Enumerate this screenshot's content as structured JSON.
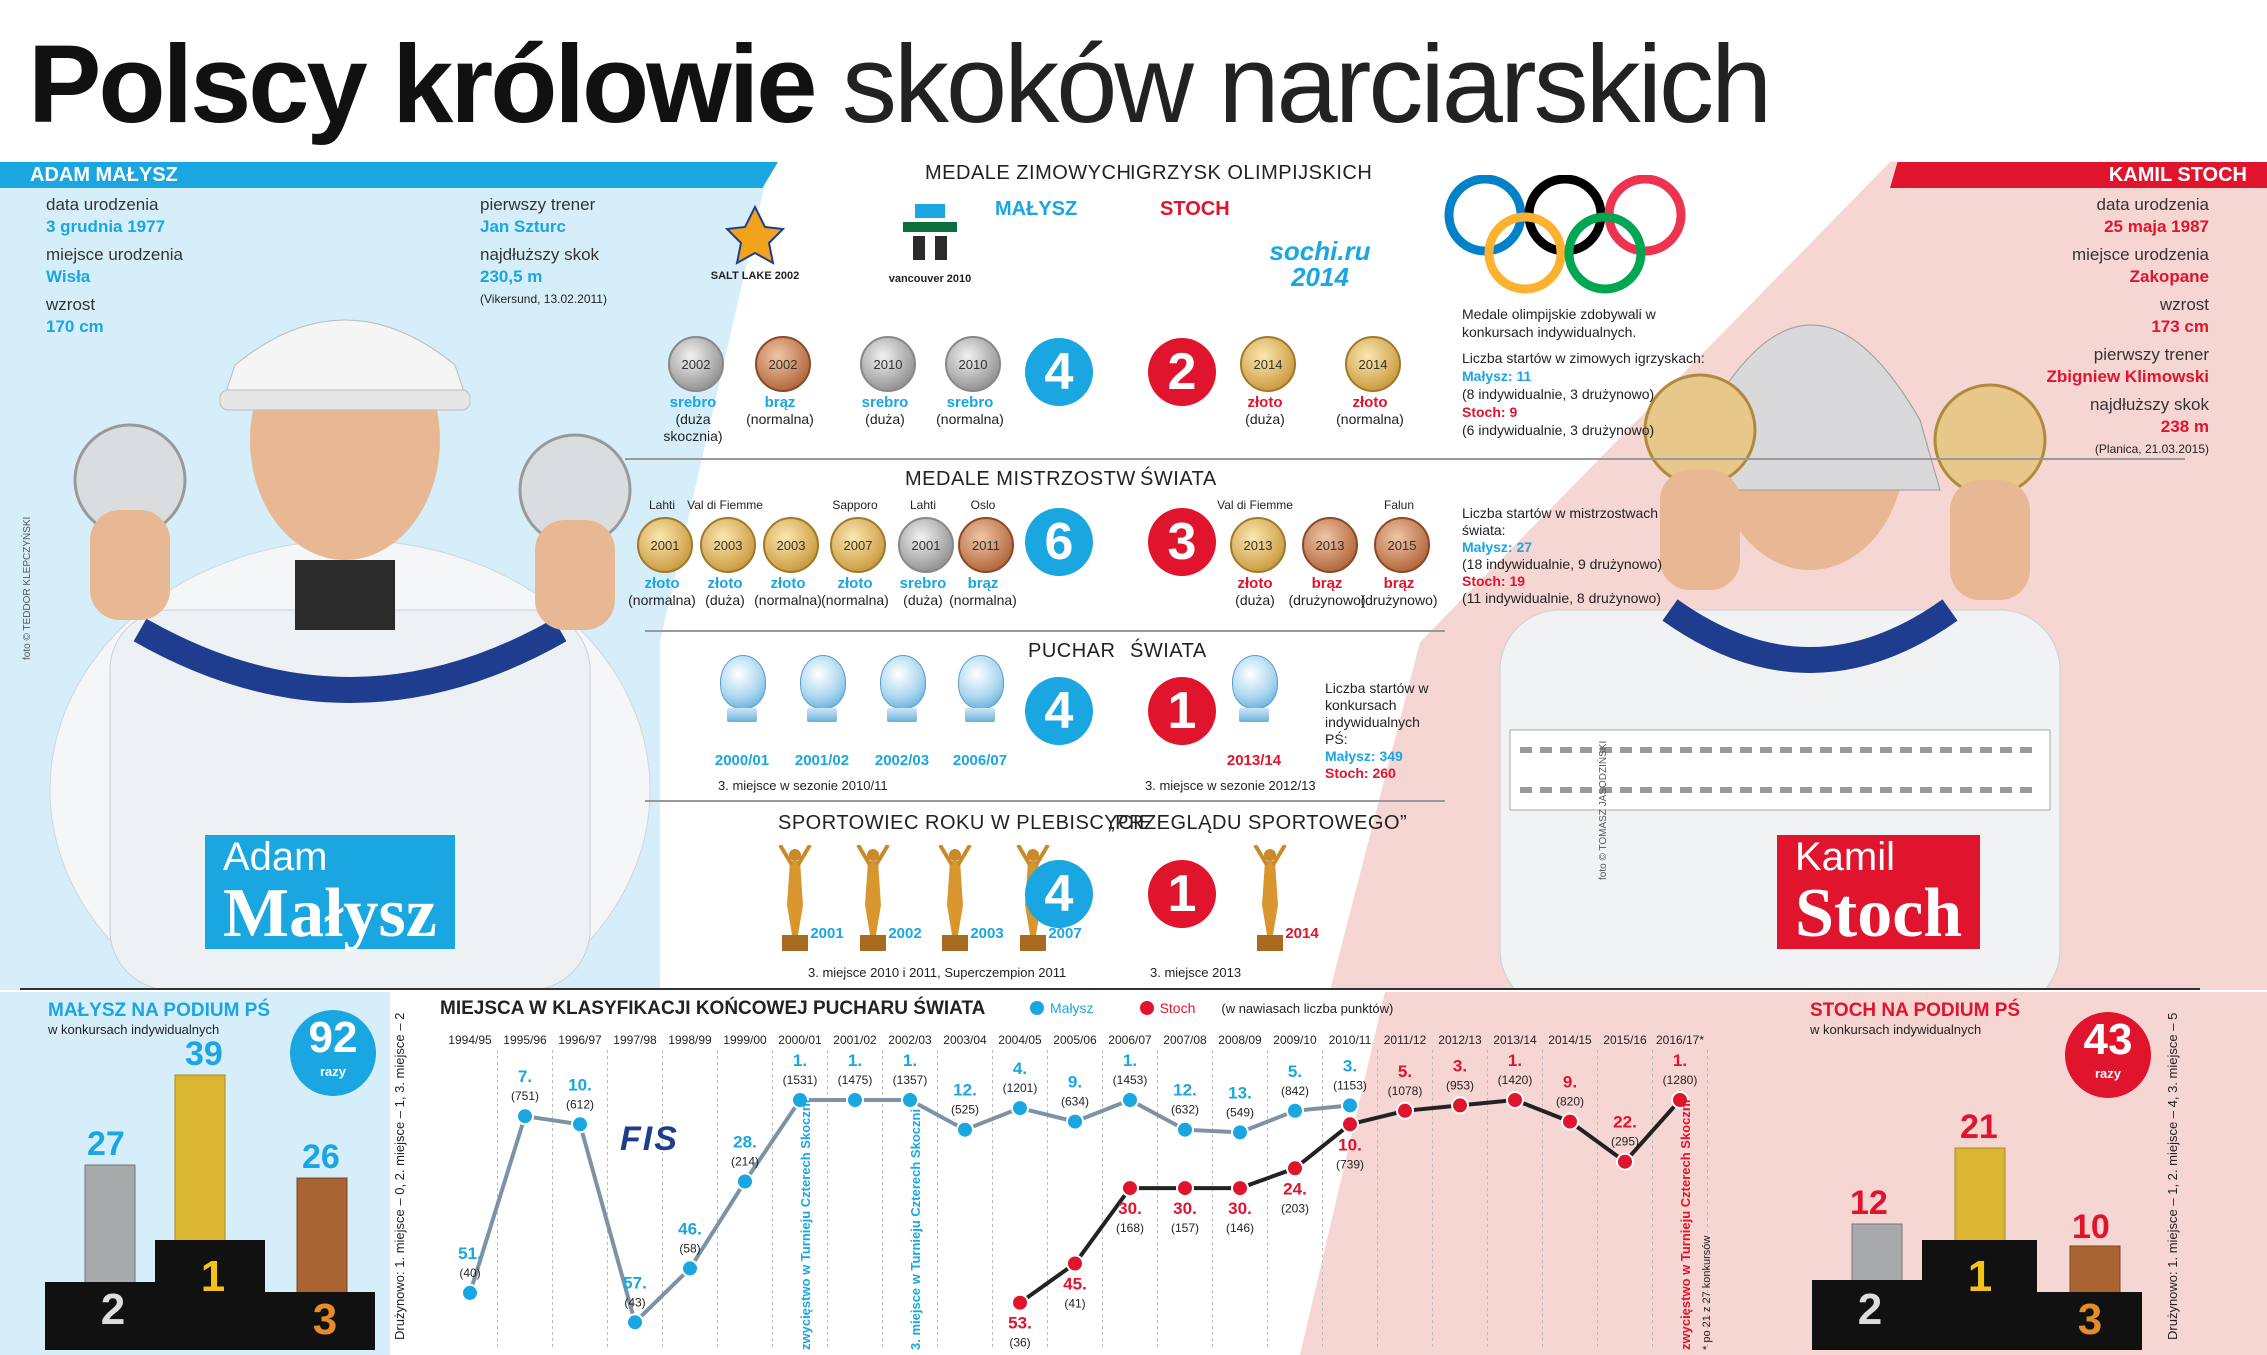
{
  "title": {
    "bold": "Polscy królowie",
    "light": "skoków narciarskich"
  },
  "colors": {
    "malysz_blue": "#1aa6e0",
    "stoch_red": "#e0142c",
    "light_blue_bg": "#d6eefa",
    "light_red_bg": "#f6d6d3"
  },
  "malysz": {
    "bar_name": "ADAM MAŁYSZ",
    "birth_date_label": "data urodzenia",
    "birth_date": "3 grudnia 1977",
    "birth_place_label": "miejsce urodzenia",
    "birth_place": "Wisła",
    "height_label": "wzrost",
    "height": "170 cm",
    "coach_label": "pierwszy trener",
    "coach": "Jan Szturc",
    "longest_label": "najdłuższy skok",
    "longest": "230,5 m",
    "longest_note": "(Vikersund, 13.02.2011)",
    "photo_credit": "foto © TEDDOR KLEPCZYŃSKI",
    "name_first": "Adam",
    "name_last": "Małysz"
  },
  "stoch": {
    "bar_name": "KAMIL STOCH",
    "birth_date_label": "data urodzenia",
    "birth_date": "25 maja 1987",
    "birth_place_label": "miejsce urodzenia",
    "birth_place": "Zakopane",
    "height_label": "wzrost",
    "height": "173 cm",
    "coach_label": "pierwszy trener",
    "coach": "Zbigniew Klimowski",
    "longest_label": "najdłuższy skok",
    "longest": "238 m",
    "longest_note": "(Planica, 21.03.2015)",
    "photo_credit": "foto © TOMASZ JASODZIŃSKI",
    "name_first": "Kamil",
    "name_last": "Stoch"
  },
  "olympics": {
    "title_left": "MEDALE ZIMOWYCH",
    "title_right": "IGRZYSK OLIMPIJSKICH",
    "label_malysz": "MAŁYSZ",
    "label_stoch": "STOCH",
    "logo_slc": "SALT LAKE 2002",
    "logo_van": "vancouver 2010",
    "logo_sochi": "sochi.ru 2014",
    "count_malysz": "4",
    "count_stoch": "2",
    "medals_malysz": [
      {
        "year": "2002",
        "type": "srebro",
        "note": "(duża skocznia)"
      },
      {
        "year": "2002",
        "type": "brąz",
        "note": "(normalna)"
      },
      {
        "year": "2010",
        "type": "srebro",
        "note": "(duża)"
      },
      {
        "year": "2010",
        "type": "srebro",
        "note": "(normalna)"
      }
    ],
    "medals_stoch": [
      {
        "year": "2014",
        "type": "złoto",
        "note": "(duża)"
      },
      {
        "year": "2014",
        "type": "złoto",
        "note": "(normalna)"
      }
    ],
    "side_text": "Medale olimpijskie zdobywali w konkursach indywidualnych.",
    "starts_title": "Liczba startów w zimowych igrzyskach:",
    "starts_malysz": "Małysz: 11",
    "starts_malysz_note": "(8 indywidualnie, 3 drużynowo)",
    "starts_stoch": "Stoch: 9",
    "starts_stoch_note": "(6 indywidualnie, 3 drużynowo)"
  },
  "world": {
    "title_left": "MEDALE MISTRZOSTW",
    "title_right": "ŚWIATA",
    "count_malysz": "6",
    "count_stoch": "3",
    "medals_malysz": [
      {
        "place": "Lahti",
        "year": "2001",
        "type": "złoto",
        "note": "(normalna)"
      },
      {
        "place": "Val di Fiemme",
        "year": "2003",
        "type": "złoto",
        "note": "(duża)"
      },
      {
        "place": "",
        "year": "2003",
        "type": "złoto",
        "note": "(normalna)"
      },
      {
        "place": "Sapporo",
        "year": "2007",
        "type": "złoto",
        "note": "(normalna)"
      },
      {
        "place": "Lahti",
        "year": "2001",
        "type": "srebro",
        "note": "(duża)"
      },
      {
        "place": "Oslo",
        "year": "2011",
        "type": "brąz",
        "note": "(normalna)"
      }
    ],
    "medals_stoch": [
      {
        "place": "Val di Fiemme",
        "year": "2013",
        "type": "złoto",
        "note": "(duża)"
      },
      {
        "place": "",
        "year": "2013",
        "type": "brąz",
        "note": "(drużynowo)"
      },
      {
        "place": "Falun",
        "year": "2015",
        "type": "brąz",
        "note": "(drużynowo)"
      }
    ],
    "starts_title": "Liczba startów w mistrzostwach świata:",
    "starts_malysz": "Małysz: 27",
    "starts_malysz_note": "(18 indywidualnie, 9 drużynowo)",
    "starts_stoch": "Stoch: 19",
    "starts_stoch_note": "(11 indywidualnie, 8 drużynowo)"
  },
  "worldcup": {
    "title_left": "PUCHAR",
    "title_right": "ŚWIATA",
    "count_malysz": "4",
    "count_stoch": "1",
    "seasons_malysz": [
      "2000/01",
      "2001/02",
      "2002/03",
      "2006/07"
    ],
    "season_stoch": "2013/14",
    "note_malysz": "3. miejsce w sezonie 2010/11",
    "note_stoch": "3. miejsce w sezonie 2012/13",
    "starts_title": "Liczba startów w konkursach indywidualnych PŚ:",
    "starts_malysz": "Małysz: 349",
    "starts_stoch": "Stoch: 260"
  },
  "athlete": {
    "title_left": "SPORTOWIEC ROKU W PLEBISCYCIE",
    "title_right": "„PRZEGLĄDU SPORTOWEGO”",
    "count_malysz": "4",
    "count_stoch": "1",
    "years_malysz": [
      "2001",
      "2002",
      "2003",
      "2007"
    ],
    "year_stoch": "2014",
    "note_malysz": "3. miejsce 2010 i 2011, Superczempion 2011",
    "note_stoch": "3. miejsce 2013"
  },
  "podium_malysz": {
    "title": "MAŁYSZ NA PODIUM PŚ",
    "subtitle": "w konkursach indywidualnych",
    "total": "92",
    "total_unit": "razy",
    "first": "39",
    "second": "27",
    "third": "26",
    "p1": "1",
    "p2": "2",
    "p3": "3",
    "team_note": "Drużynowo: 1. miejsce – 0, 2. miejsce – 1, 3. miejsce – 2"
  },
  "podium_stoch": {
    "title": "STOCH NA PODIUM PŚ",
    "subtitle": "w konkursach indywidualnych",
    "total": "43",
    "total_unit": "razy",
    "first": "21",
    "second": "12",
    "third": "10",
    "p1": "1",
    "p2": "2",
    "p3": "3",
    "team_note": "Drużynowo: 1. miejsce – 1, 2. miejsce – 4, 3. miejsce – 5"
  },
  "chart_data": {
    "type": "line",
    "title": "MIEJSCA W KLASYFIKACJI KOŃCOWEJ PUCHARU ŚWIATA",
    "legend_note": "(w nawiasach liczba punktów)",
    "inverted_y": true,
    "categories": [
      "1994/95",
      "1995/96",
      "1996/97",
      "1997/98",
      "1998/99",
      "1999/00",
      "2000/01",
      "2001/02",
      "2002/03",
      "2003/04",
      "2004/05",
      "2005/06",
      "2006/07",
      "2007/08",
      "2008/09",
      "2009/10",
      "2010/11",
      "2011/12",
      "2012/13",
      "2013/14",
      "2014/15",
      "2015/16",
      "2016/17*"
    ],
    "series": [
      {
        "name": "Małysz",
        "color": "#1aa6e0",
        "places": [
          "51.",
          "7.",
          "10.",
          "57.",
          "46.",
          "28.",
          "1.",
          "1.",
          "1.",
          "12.",
          "4.",
          "9.",
          "1.",
          "12.",
          "13.",
          "5.",
          "3."
        ],
        "points": [
          "(40)",
          "(751)",
          "(612)",
          "(43)",
          "(58)",
          "(214)",
          "(1531)",
          "(1475)",
          "(1357)",
          "(525)",
          "(1201)",
          "(634)",
          "(1453)",
          "(632)",
          "(549)",
          "(842)",
          "(1153)"
        ]
      },
      {
        "name": "Stoch",
        "color": "#e0142c",
        "places": [
          "53.",
          "45.",
          "30.",
          "30.",
          "30.",
          "24.",
          "10.",
          "5.",
          "3.",
          "1.",
          "9.",
          "22.",
          "1."
        ],
        "points": [
          "(36)",
          "(41)",
          "(168)",
          "(157)",
          "(146)",
          "(203)",
          "(739)",
          "(1078)",
          "(953)",
          "(1420)",
          "(820)",
          "(295)",
          "(1280)"
        ]
      }
    ],
    "annotations": [
      "zwycięstwo w Turnieju Czterech Skoczni",
      "3. miejsce w Turnieju Czterech Skoczni",
      "zwycięstwo w Turnieju Czterech Skoczni"
    ],
    "footnote": "* po 21 z 27 konkursów",
    "fis_logo": "FIS"
  }
}
